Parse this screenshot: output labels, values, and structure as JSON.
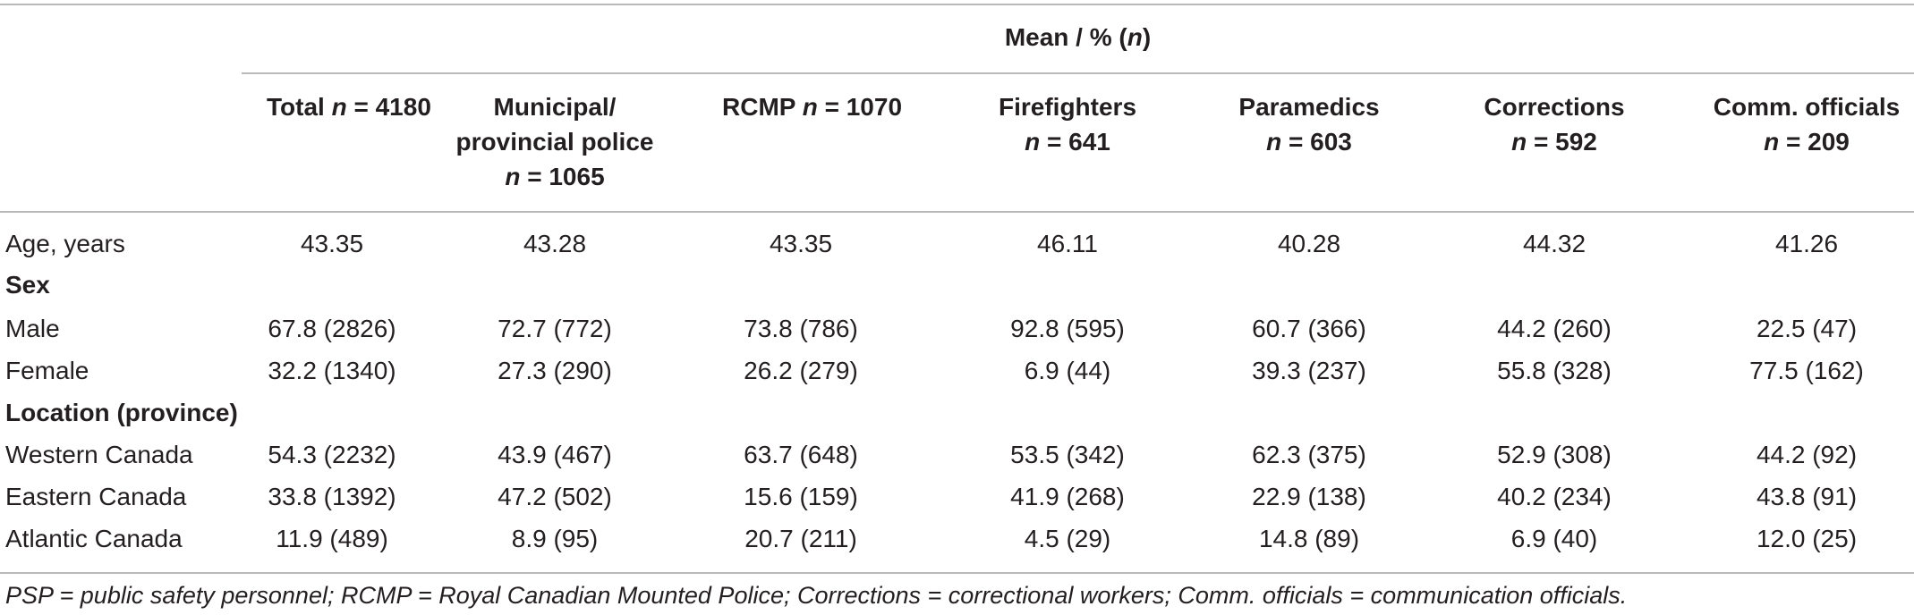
{
  "table": {
    "spanner": "Mean / % (n)",
    "spanner_pre": "Mean / % (",
    "spanner_n": "n",
    "spanner_post": ")",
    "columns": [
      {
        "lines": [
          [
            "Total ",
            "n",
            " = 4180"
          ]
        ]
      },
      {
        "lines": [
          [
            "Municipal/"
          ],
          [
            "provincial police"
          ],
          [
            "",
            "n",
            " = 1065"
          ]
        ]
      },
      {
        "lines": [
          [
            "RCMP ",
            "n",
            " = 1070"
          ]
        ]
      },
      {
        "lines": [
          [
            "Firefighters"
          ],
          [
            "",
            "n",
            " = 641"
          ]
        ]
      },
      {
        "lines": [
          [
            "Paramedics"
          ],
          [
            "",
            "n",
            " = 603"
          ]
        ]
      },
      {
        "lines": [
          [
            "Corrections"
          ],
          [
            "",
            "n",
            " = 592"
          ]
        ]
      },
      {
        "lines": [
          [
            "Comm. officials"
          ],
          [
            "",
            "n",
            " = 209"
          ]
        ]
      }
    ],
    "rows": [
      {
        "label": "Age, years",
        "values": [
          "43.35",
          "43.28",
          "43.35",
          "46.11",
          "40.28",
          "44.32",
          "41.26"
        ]
      },
      {
        "label": "Sex",
        "section": true
      },
      {
        "label": "Male",
        "values": [
          "67.8 (2826)",
          "72.7 (772)",
          "73.8 (786)",
          "92.8 (595)",
          "60.7 (366)",
          "44.2 (260)",
          "22.5 (47)"
        ]
      },
      {
        "label": "Female",
        "values": [
          "32.2 (1340)",
          "27.3 (290)",
          "26.2 (279)",
          "6.9 (44)",
          "39.3 (237)",
          "55.8 (328)",
          "77.5 (162)"
        ]
      },
      {
        "label": "Location (province)",
        "section": true
      },
      {
        "label": "Western Canada",
        "values": [
          "54.3 (2232)",
          "43.9 (467)",
          "63.7 (648)",
          "53.5 (342)",
          "62.3 (375)",
          "52.9 (308)",
          "44.2 (92)"
        ]
      },
      {
        "label": "Eastern Canada",
        "values": [
          "33.8 (1392)",
          "47.2 (502)",
          "15.6 (159)",
          "41.9 (268)",
          "22.9 (138)",
          "40.2 (234)",
          "43.8 (91)"
        ]
      },
      {
        "label": "Atlantic Canada",
        "values": [
          "11.9 (489)",
          "8.9 (95)",
          "20.7 (211)",
          "4.5 (29)",
          "14.8 (89)",
          "6.9 (40)",
          "12.0 (25)"
        ]
      }
    ],
    "footnote": "PSP = public safety personnel; RCMP = Royal Canadian Mounted Police; Corrections = correctional workers; Comm. officials = communication officials."
  }
}
